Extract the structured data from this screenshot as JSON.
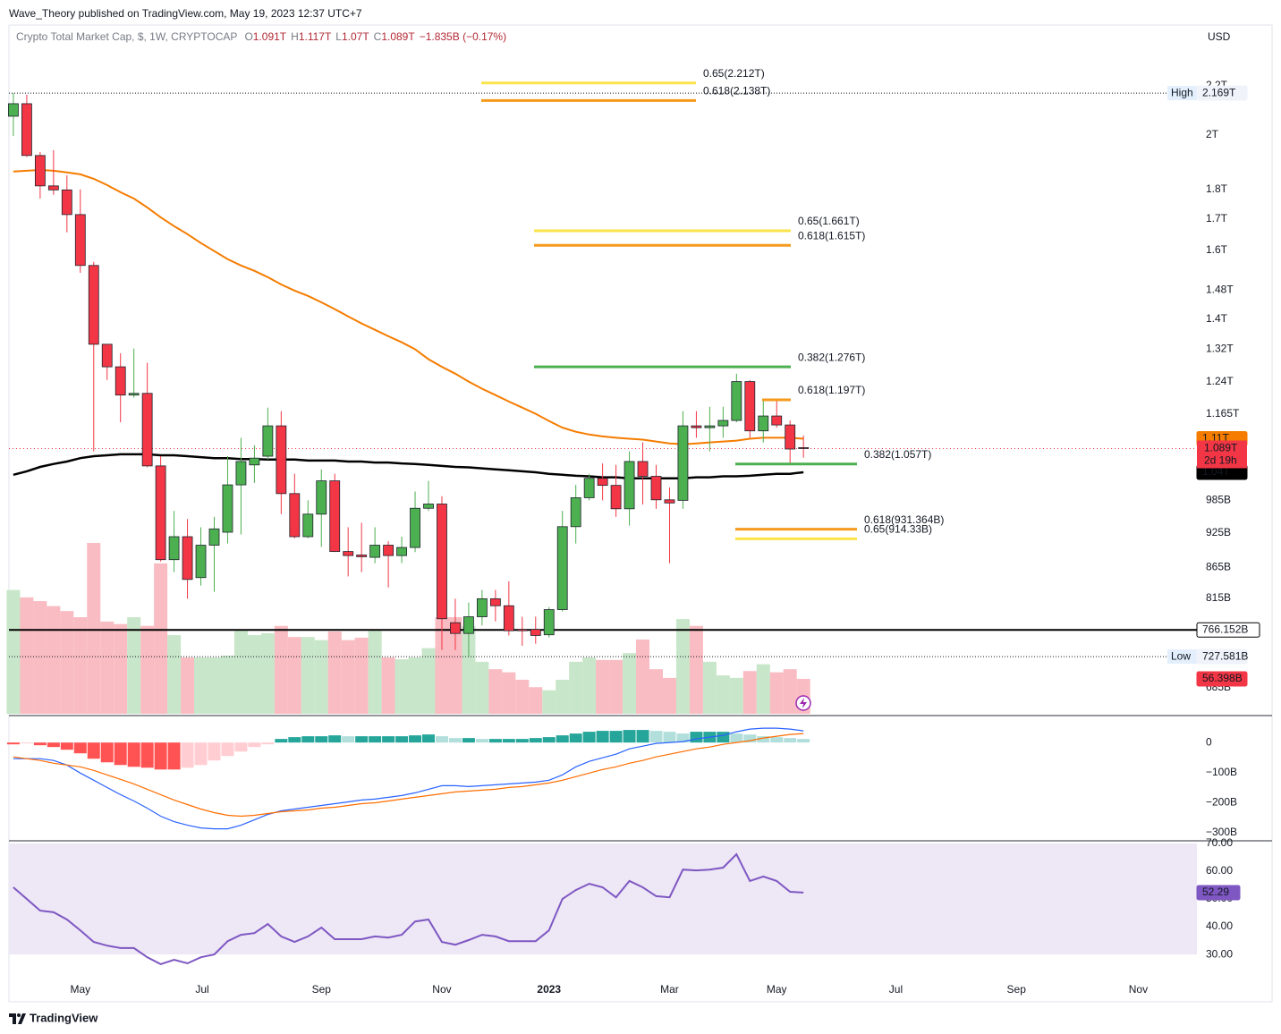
{
  "header": {
    "publisher_line": "Wave_Theory published on TradingView.com, May 19, 2023 12:37 UTC+7"
  },
  "chart_data": [
    {
      "type": "candlestick",
      "title": "Crypto Total Market Cap, $, 1W, CRYPTOCAP",
      "legend": [
        {
          "key": "O",
          "value": "1.091T"
        },
        {
          "key": "H",
          "value": "1.117T"
        },
        {
          "key": "L",
          "value": "1.07T"
        },
        {
          "key": "C",
          "value": "1.089T"
        }
      ],
      "change_text": "−1.835B (−0.17%)",
      "currency": "USD",
      "log_scale": true,
      "grid": false,
      "ylim": [
        649,
        2475
      ],
      "yticks": [
        {
          "value": 2200,
          "label": "2.2T"
        },
        {
          "value": 2000,
          "label": "2T"
        },
        {
          "value": 1800,
          "label": "1.8T"
        },
        {
          "value": 1700,
          "label": "1.7T"
        },
        {
          "value": 1600,
          "label": "1.6T"
        },
        {
          "value": 1480,
          "label": "1.48T"
        },
        {
          "value": 1400,
          "label": "1.4T"
        },
        {
          "value": 1320,
          "label": "1.32T"
        },
        {
          "value": 1240,
          "label": "1.24T"
        },
        {
          "value": 1165,
          "label": "1.165T"
        },
        {
          "value": 985,
          "label": "985B"
        },
        {
          "value": 925,
          "label": "925B"
        },
        {
          "value": 865,
          "label": "865B"
        },
        {
          "value": 815,
          "label": "815B"
        },
        {
          "value": 685,
          "label": "685B"
        }
      ],
      "xlim": [
        -0.33,
        88.38
      ],
      "xticks": [
        {
          "value": 5,
          "label": "May"
        },
        {
          "value": 14.1,
          "label": "Jul"
        },
        {
          "value": 23,
          "label": "Sep"
        },
        {
          "value": 32,
          "label": "Nov"
        },
        {
          "value": 40,
          "label": "2023"
        },
        {
          "value": 49,
          "label": "Mar"
        },
        {
          "value": 57,
          "label": "May"
        },
        {
          "value": 65.9,
          "label": "Jul"
        },
        {
          "value": 74.9,
          "label": "Sep"
        },
        {
          "value": 84,
          "label": "Nov"
        }
      ],
      "up_color": "#4caf50",
      "down_color": "#f23645",
      "open": [
        2074,
        2125,
        1922,
        1812,
        1798,
        1714,
        1553,
        1333,
        1276,
        1208,
        1212,
        1053,
        878,
        918,
        848,
        903,
        926,
        1015,
        1055,
        1073,
        1138,
        998,
        918,
        959,
        1023,
        892,
        886,
        882,
        903,
        885,
        899,
        970,
        978,
        777,
        761,
        786,
        814,
        803,
        767,
        767,
        759,
        797,
        936,
        990,
        1028,
        1014,
        969,
        1062,
        1032,
        986,
        985,
        1138,
        1134,
        1138,
        1150,
        1240,
        1127,
        1160,
        1140,
        1091
      ],
      "high": [
        2169,
        2162,
        1935,
        1942,
        1850,
        1800,
        1564,
        1333,
        1310,
        1322,
        1286,
        1073,
        965,
        950,
        935,
        954,
        1073,
        1112,
        1096,
        1179,
        1171,
        1037,
        985,
        1046,
        1037,
        935,
        943,
        935,
        910,
        918,
        1002,
        1023,
        993,
        814,
        808,
        828,
        828,
        842,
        786,
        786,
        801,
        965,
        1015,
        1037,
        1058,
        1055,
        1083,
        1102,
        1055,
        1010,
        1171,
        1171,
        1181,
        1181,
        1259,
        1244,
        1197,
        1197,
        1150,
        1117
      ],
      "low": [
        1996,
        1916,
        1768,
        1781,
        1656,
        1531,
        1083,
        1244,
        1146,
        1202,
        1050,
        875,
        857,
        814,
        835,
        825,
        906,
        922,
        1019,
        1066,
        959,
        915,
        915,
        900,
        891,
        850,
        857,
        872,
        832,
        872,
        891,
        965,
        737,
        737,
        727.581,
        773,
        779,
        758,
        743,
        746,
        755,
        794,
        906,
        985,
        985,
        954,
        938,
        977,
        969,
        872,
        969,
        1112,
        1083,
        1112,
        1146,
        1112,
        1102,
        1134,
        1055,
        1070
      ],
      "close": [
        2125,
        1922,
        1812,
        1798,
        1714,
        1553,
        1333,
        1276,
        1208,
        1212,
        1053,
        878,
        918,
        845,
        903,
        932,
        1015,
        1062,
        1069,
        1138,
        998,
        918,
        959,
        1023,
        892,
        885,
        883,
        903,
        885,
        899,
        970,
        978,
        783,
        761,
        786,
        814,
        803,
        765,
        765,
        758,
        797,
        936,
        990,
        1028,
        1014,
        969,
        1062,
        1032,
        986,
        980,
        1138,
        1134,
        1138,
        1150,
        1240,
        1127,
        1160,
        1140,
        1088,
        1089
      ],
      "price_label": "1.089T",
      "countdown": "2d 19h",
      "moving_averages": [
        {
          "color": "#f57c00",
          "last_label": "1.11T",
          "values": [
            1863,
            1866,
            1869,
            1866,
            1860,
            1853,
            1837,
            1815,
            1790,
            1768,
            1738,
            1705,
            1676,
            1650,
            1622,
            1597,
            1572,
            1553,
            1537,
            1518,
            1497,
            1479,
            1464,
            1446,
            1427,
            1407,
            1388,
            1371,
            1354,
            1338,
            1320,
            1295,
            1276,
            1259,
            1240,
            1223,
            1208,
            1193,
            1179,
            1165,
            1149,
            1134,
            1125,
            1119,
            1115,
            1112,
            1110,
            1108,
            1104,
            1100,
            1098,
            1100,
            1102,
            1104,
            1106,
            1110,
            1112,
            1112,
            1112,
            1110
          ]
        },
        {
          "color": "#000000",
          "last_label": "1.04T",
          "values": [
            1035,
            1042,
            1051,
            1057,
            1062,
            1069,
            1073,
            1075,
            1077,
            1077,
            1077,
            1075,
            1075,
            1073,
            1071,
            1069,
            1069,
            1067,
            1067,
            1066,
            1066,
            1066,
            1064,
            1064,
            1064,
            1062,
            1062,
            1060,
            1060,
            1058,
            1057,
            1055,
            1053,
            1051,
            1050,
            1048,
            1046,
            1044,
            1042,
            1040,
            1037,
            1035,
            1033,
            1032,
            1030,
            1030,
            1028,
            1028,
            1028,
            1028,
            1028,
            1030,
            1030,
            1032,
            1032,
            1033,
            1035,
            1037,
            1037,
            1040
          ]
        }
      ],
      "volume": {
        "up_color": "#c8e6c9",
        "down_color": "#f9bcc2",
        "last_label": "56.398B",
        "values": [
          200,
          188,
          182,
          174,
          166,
          156,
          276,
          149,
          145,
          156,
          142,
          243,
          127,
          91,
          91,
          91,
          94,
          134,
          127,
          130,
          142,
          124,
          124,
          119,
          133,
          119,
          123,
          134,
          91,
          88,
          91,
          106,
          156,
          156,
          142,
          84,
          72,
          67,
          55,
          43,
          38,
          55,
          84,
          91,
          87,
          87,
          98,
          120,
          72,
          58,
          153,
          142,
          84,
          62,
          58,
          69,
          80,
          67,
          72,
          56.398
        ]
      },
      "levels": [
        {
          "value": 766.152,
          "label": "766.152B",
          "color": "#000000"
        }
      ],
      "extremes": [
        {
          "name": "High",
          "value": 2169,
          "label": "2.169T"
        },
        {
          "name": "Low",
          "value": 727.581,
          "label": "727.581B"
        }
      ],
      "fib_levels": [
        {
          "label": "0.65(2.212T)",
          "value": 2212,
          "color": "#fbe34a"
        },
        {
          "label": "0.618(2.138T)",
          "value": 2138,
          "color": "#f59a1c"
        },
        {
          "label": "0.65(1.661T)",
          "value": 1661,
          "color": "#fbe34a"
        },
        {
          "label": "0.618(1.615T)",
          "value": 1615,
          "color": "#f59a1c"
        },
        {
          "label": "0.382(1.276T)",
          "value": 1276,
          "color": "#4caf50"
        },
        {
          "label": "0.618(1.197T)",
          "value": 1197,
          "color": "#f59a1c"
        },
        {
          "label": "0.382(1.057T)",
          "value": 1057,
          "color": "#4caf50"
        },
        {
          "label": "0.618(931.364B)",
          "value": 931.364,
          "color": "#f59a1c"
        },
        {
          "label": "0.65(914.33B)",
          "value": 914.33,
          "color": "#fbe34a"
        }
      ]
    },
    {
      "type": "macd",
      "grid": false,
      "ylim": [
        -328,
        90
      ],
      "yticks": [
        0,
        {
          "value": -100,
          "label": "−100B"
        },
        {
          "value": -200,
          "label": "−200B"
        },
        {
          "value": -300,
          "label": "−300B"
        }
      ],
      "histogram": {
        "colors": [
          "#26a69a",
          "#b2dfdb",
          "#ff5252",
          "#ffcdd2"
        ],
        "values": [
          -6,
          -3,
          -9,
          -15,
          -24,
          -36,
          -54,
          -66,
          -75,
          -81,
          -84,
          -90,
          -90,
          -84,
          -75,
          -60,
          -45,
          -30,
          -15,
          -6,
          12,
          18,
          21,
          21,
          24,
          21,
          21,
          21,
          21,
          21,
          24,
          27,
          21,
          15,
          15,
          12,
          12,
          12,
          12,
          15,
          18,
          24,
          30,
          36,
          39,
          39,
          42,
          42,
          39,
          36,
          30,
          36,
          36,
          36,
          30,
          27,
          21,
          18,
          15,
          12
        ]
      },
      "series": [
        {
          "color": "#2962ff",
          "values": [
            -54,
            -54,
            -54,
            -60,
            -75,
            -102,
            -126,
            -150,
            -174,
            -195,
            -219,
            -246,
            -264,
            -276,
            -285,
            -288,
            -288,
            -276,
            -258,
            -240,
            -228,
            -222,
            -216,
            -210,
            -204,
            -198,
            -192,
            -189,
            -183,
            -177,
            -168,
            -156,
            -144,
            -144,
            -147,
            -144,
            -141,
            -138,
            -135,
            -132,
            -126,
            -108,
            -81,
            -63,
            -51,
            -39,
            -21,
            -12,
            -3,
            0,
            3,
            12,
            18,
            24,
            36,
            45,
            48,
            48,
            45,
            39
          ]
        },
        {
          "color": "#ff6d00",
          "values": [
            -48,
            -54,
            -60,
            -69,
            -75,
            -81,
            -93,
            -108,
            -123,
            -138,
            -156,
            -174,
            -192,
            -207,
            -222,
            -234,
            -243,
            -246,
            -243,
            -237,
            -231,
            -228,
            -225,
            -219,
            -216,
            -210,
            -204,
            -201,
            -195,
            -189,
            -183,
            -177,
            -171,
            -165,
            -162,
            -159,
            -156,
            -150,
            -147,
            -141,
            -135,
            -126,
            -114,
            -102,
            -90,
            -81,
            -69,
            -60,
            -48,
            -39,
            -30,
            -21,
            -15,
            -6,
            0,
            6,
            15,
            21,
            27,
            30
          ]
        }
      ]
    },
    {
      "type": "line",
      "grid": false,
      "ylim": [
        21,
        70.97
      ],
      "yticks": [
        {
          "value": 70,
          "label": "70.00"
        },
        {
          "value": 60,
          "label": "60.00"
        },
        {
          "value": 50,
          "label": "50.00"
        },
        {
          "value": 40,
          "label": "40.00"
        },
        {
          "value": 30,
          "label": "30.00"
        }
      ],
      "band": [
        30,
        70
      ],
      "band_color": "#ede7f6",
      "last_label": "52.29",
      "series": [
        {
          "color": "#7e57c2",
          "values": [
            54.2,
            50.0,
            45.8,
            45.2,
            42.6,
            38.7,
            34.5,
            33.2,
            32.3,
            32.3,
            29.0,
            26.5,
            28.1,
            26.8,
            29.0,
            30.0,
            34.8,
            37.1,
            37.7,
            41.0,
            36.5,
            34.5,
            36.5,
            39.7,
            35.5,
            35.5,
            35.5,
            36.5,
            36.1,
            37.1,
            41.9,
            42.6,
            34.5,
            33.5,
            35.2,
            37.1,
            36.5,
            34.8,
            34.8,
            34.8,
            38.7,
            50.0,
            53.2,
            55.5,
            54.2,
            50.6,
            56.5,
            54.2,
            51.0,
            50.6,
            60.6,
            60.3,
            60.6,
            61.3,
            66.1,
            56.5,
            58.1,
            56.5,
            52.6,
            52.29
          ]
        }
      ]
    }
  ],
  "footer": {
    "brand": "TradingView"
  }
}
